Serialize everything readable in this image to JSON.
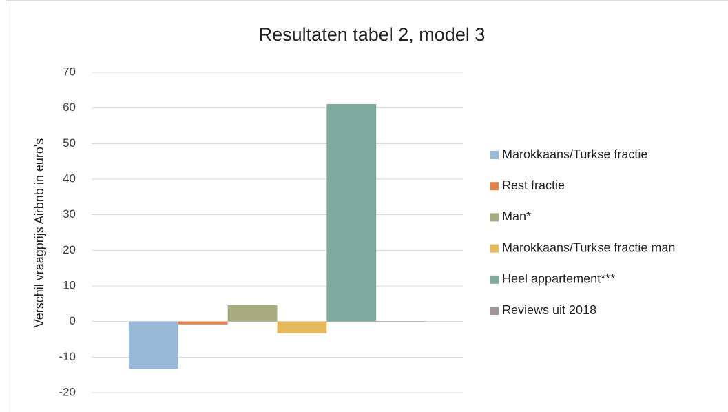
{
  "chart_data": {
    "type": "bar",
    "title": "Resultaten tabel 2, model 3",
    "y_label": "Verschil vraagprijs Airbnb in euro's",
    "categories": [
      null
    ],
    "series": [
      {
        "name": "Marokkaans/Turkse fractie",
        "color": "#9ab9d9",
        "values": [
          -13.3
        ]
      },
      {
        "name": "Rest fractie",
        "color": "#e0834c",
        "values": [
          -0.8
        ]
      },
      {
        "name": "Man*",
        "color": "#a6ab80",
        "values": [
          4.6
        ]
      },
      {
        "name": "Marokkaans/Turkse fractie man",
        "color": "#e6b85c",
        "values": [
          -3.3
        ]
      },
      {
        "name": "Heel appartement***",
        "color": "#7faa9e",
        "values": [
          61.1
        ]
      },
      {
        "name": "Reviews uit 2018",
        "color": "#a19599",
        "values": [
          0.1
        ]
      }
    ],
    "ylim": [
      -20,
      70
    ],
    "yticks": [
      -20,
      -10,
      0,
      10,
      20,
      30,
      40,
      50,
      60,
      70
    ],
    "grid": true,
    "legend": "right"
  }
}
